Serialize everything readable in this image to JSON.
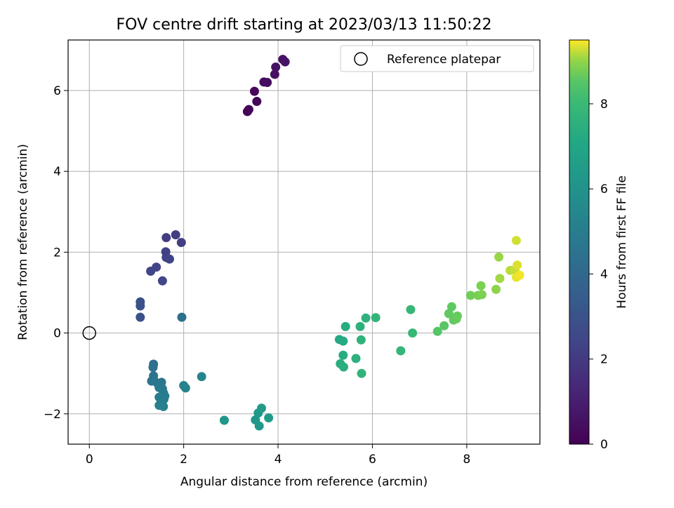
{
  "chart_data": {
    "type": "scatter",
    "title": "FOV centre drift starting at 2023/03/13 11:50:22",
    "xlabel": "Angular distance from reference (arcmin)",
    "ylabel": "Rotation from reference (arcmin)",
    "xlim": [
      -0.45,
      9.55
    ],
    "ylim": [
      -2.75,
      7.25
    ],
    "xticks": [
      0,
      2,
      4,
      6,
      8
    ],
    "yticks": [
      -2,
      0,
      2,
      4,
      6
    ],
    "grid": true,
    "legend": {
      "position": "top-right",
      "entries": [
        "Reference platepar"
      ]
    },
    "reference_point": {
      "x": 0,
      "y": 0
    },
    "colorbar": {
      "label": "Hours from first FF file",
      "colormap": "viridis",
      "range": [
        0,
        9.5
      ],
      "ticks": [
        0,
        2,
        4,
        6,
        8
      ]
    },
    "points": [
      {
        "x": 3.35,
        "y": 5.48,
        "c": 0.1
      },
      {
        "x": 3.38,
        "y": 5.53,
        "c": 0.15
      },
      {
        "x": 3.55,
        "y": 5.73,
        "c": 0.2
      },
      {
        "x": 3.5,
        "y": 5.98,
        "c": 0.25
      },
      {
        "x": 3.7,
        "y": 6.21,
        "c": 0.35
      },
      {
        "x": 3.77,
        "y": 6.2,
        "c": 0.4
      },
      {
        "x": 3.93,
        "y": 6.4,
        "c": 0.5
      },
      {
        "x": 3.95,
        "y": 6.58,
        "c": 0.55
      },
      {
        "x": 4.1,
        "y": 6.77,
        "c": 0.6
      },
      {
        "x": 4.15,
        "y": 6.71,
        "c": 0.65
      },
      {
        "x": 1.83,
        "y": 2.43,
        "c": 2.1
      },
      {
        "x": 1.63,
        "y": 2.36,
        "c": 2.15
      },
      {
        "x": 1.95,
        "y": 2.24,
        "c": 2.2
      },
      {
        "x": 1.62,
        "y": 2.01,
        "c": 2.25
      },
      {
        "x": 1.63,
        "y": 1.87,
        "c": 2.3
      },
      {
        "x": 1.7,
        "y": 1.83,
        "c": 2.35
      },
      {
        "x": 1.42,
        "y": 1.63,
        "c": 2.4
      },
      {
        "x": 1.3,
        "y": 1.53,
        "c": 2.45
      },
      {
        "x": 1.55,
        "y": 1.29,
        "c": 2.5
      },
      {
        "x": 1.08,
        "y": 0.77,
        "c": 2.85
      },
      {
        "x": 1.08,
        "y": 0.67,
        "c": 2.9
      },
      {
        "x": 1.08,
        "y": 0.39,
        "c": 2.95
      },
      {
        "x": 1.96,
        "y": 0.39,
        "c": 4.3
      },
      {
        "x": 1.36,
        "y": -0.77,
        "c": 4.4
      },
      {
        "x": 1.35,
        "y": -0.85,
        "c": 4.45
      },
      {
        "x": 1.36,
        "y": -1.06,
        "c": 4.5
      },
      {
        "x": 1.38,
        "y": -1.19,
        "c": 4.55
      },
      {
        "x": 1.32,
        "y": -1.19,
        "c": 4.6
      },
      {
        "x": 1.45,
        "y": -1.25,
        "c": 4.65
      },
      {
        "x": 1.53,
        "y": -1.22,
        "c": 4.7
      },
      {
        "x": 1.48,
        "y": -1.35,
        "c": 4.75
      },
      {
        "x": 1.55,
        "y": -1.38,
        "c": 4.8
      },
      {
        "x": 1.57,
        "y": -1.48,
        "c": 4.85
      },
      {
        "x": 1.6,
        "y": -1.56,
        "c": 4.9
      },
      {
        "x": 1.58,
        "y": -1.64,
        "c": 4.95
      },
      {
        "x": 1.48,
        "y": -1.59,
        "c": 5.0
      },
      {
        "x": 1.52,
        "y": -1.72,
        "c": 5.05
      },
      {
        "x": 1.48,
        "y": -1.79,
        "c": 5.1
      },
      {
        "x": 1.57,
        "y": -1.82,
        "c": 5.15
      },
      {
        "x": 2.0,
        "y": -1.3,
        "c": 5.2
      },
      {
        "x": 2.04,
        "y": -1.36,
        "c": 5.25
      },
      {
        "x": 2.38,
        "y": -1.08,
        "c": 5.3
      },
      {
        "x": 2.86,
        "y": -2.16,
        "c": 6.2
      },
      {
        "x": 3.52,
        "y": -2.15,
        "c": 6.25
      },
      {
        "x": 3.6,
        "y": -2.3,
        "c": 6.3
      },
      {
        "x": 3.58,
        "y": -1.98,
        "c": 6.35
      },
      {
        "x": 3.65,
        "y": -1.86,
        "c": 6.4
      },
      {
        "x": 3.8,
        "y": -2.1,
        "c": 6.45
      },
      {
        "x": 5.3,
        "y": -0.16,
        "c": 7.2
      },
      {
        "x": 5.38,
        "y": -0.2,
        "c": 7.25
      },
      {
        "x": 5.43,
        "y": 0.16,
        "c": 7.3
      },
      {
        "x": 5.38,
        "y": -0.55,
        "c": 7.35
      },
      {
        "x": 5.32,
        "y": -0.76,
        "c": 7.4
      },
      {
        "x": 5.39,
        "y": -0.84,
        "c": 7.45
      },
      {
        "x": 5.65,
        "y": -0.63,
        "c": 7.5
      },
      {
        "x": 5.74,
        "y": 0.16,
        "c": 7.55
      },
      {
        "x": 5.86,
        "y": 0.37,
        "c": 7.6
      },
      {
        "x": 5.76,
        "y": -0.17,
        "c": 7.65
      },
      {
        "x": 5.77,
        "y": -1.0,
        "c": 7.7
      },
      {
        "x": 6.07,
        "y": 0.38,
        "c": 7.75
      },
      {
        "x": 6.6,
        "y": -0.44,
        "c": 7.8
      },
      {
        "x": 6.81,
        "y": 0.58,
        "c": 7.85
      },
      {
        "x": 6.85,
        "y": 0.0,
        "c": 7.9
      },
      {
        "x": 7.38,
        "y": 0.04,
        "c": 8.5
      },
      {
        "x": 7.52,
        "y": 0.18,
        "c": 8.55
      },
      {
        "x": 7.62,
        "y": 0.48,
        "c": 8.6
      },
      {
        "x": 7.68,
        "y": 0.65,
        "c": 8.62
      },
      {
        "x": 7.72,
        "y": 0.32,
        "c": 8.65
      },
      {
        "x": 7.8,
        "y": 0.42,
        "c": 8.68
      },
      {
        "x": 7.78,
        "y": 0.35,
        "c": 8.7
      },
      {
        "x": 8.08,
        "y": 0.93,
        "c": 8.8
      },
      {
        "x": 8.24,
        "y": 0.93,
        "c": 8.85
      },
      {
        "x": 8.3,
        "y": 1.17,
        "c": 8.9
      },
      {
        "x": 8.32,
        "y": 0.95,
        "c": 8.92
      },
      {
        "x": 8.62,
        "y": 1.08,
        "c": 9.0
      },
      {
        "x": 8.68,
        "y": 1.88,
        "c": 9.05
      },
      {
        "x": 8.7,
        "y": 1.35,
        "c": 9.1
      },
      {
        "x": 8.92,
        "y": 1.55,
        "c": 9.2
      },
      {
        "x": 9.02,
        "y": 1.56,
        "c": 9.25
      },
      {
        "x": 9.05,
        "y": 2.29,
        "c": 9.3
      },
      {
        "x": 9.07,
        "y": 1.68,
        "c": 9.35
      },
      {
        "x": 9.05,
        "y": 1.38,
        "c": 9.4
      },
      {
        "x": 9.12,
        "y": 1.43,
        "c": 9.45
      }
    ]
  }
}
